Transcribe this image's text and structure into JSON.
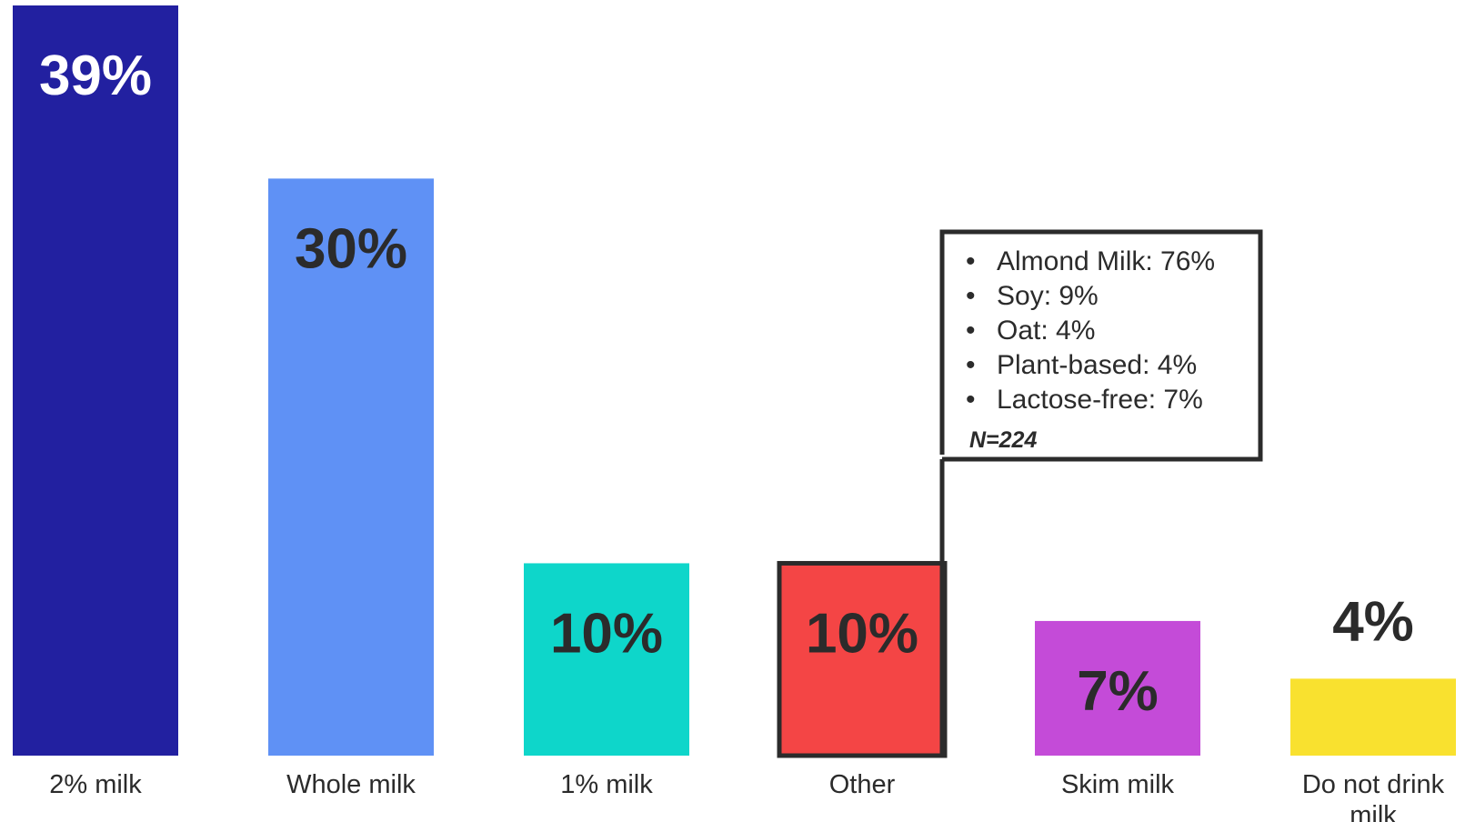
{
  "chart_data": {
    "type": "bar",
    "categories": [
      "2% milk",
      "Whole milk",
      "1% milk",
      "Other",
      "Skim milk",
      [
        "Do not drink",
        "milk"
      ]
    ],
    "values": [
      39,
      30,
      10,
      10,
      7,
      4
    ],
    "value_labels": [
      "39%",
      "30%",
      "10%",
      "10%",
      "7%",
      "4%"
    ],
    "colors": [
      "#2220A0",
      "#5F91F5",
      "#0ED6CA",
      "#F44545",
      "#C44BD8",
      "#F9E12F"
    ],
    "value_label_colors": [
      "#ffffff",
      "#2b2b2b",
      "#2b2b2b",
      "#2b2b2b",
      "#2b2b2b",
      "#2b2b2b"
    ],
    "highlighted_category": "Other",
    "ylim": [
      0,
      39
    ],
    "title": "",
    "xlabel": "",
    "ylabel": "",
    "grid": false,
    "callout": {
      "items": [
        "Almond Milk: 76%",
        "Soy: 9%",
        "Oat: 4%",
        "Plant-based: 4%",
        "Lactose-free: 7%"
      ],
      "note": "N=224"
    }
  }
}
